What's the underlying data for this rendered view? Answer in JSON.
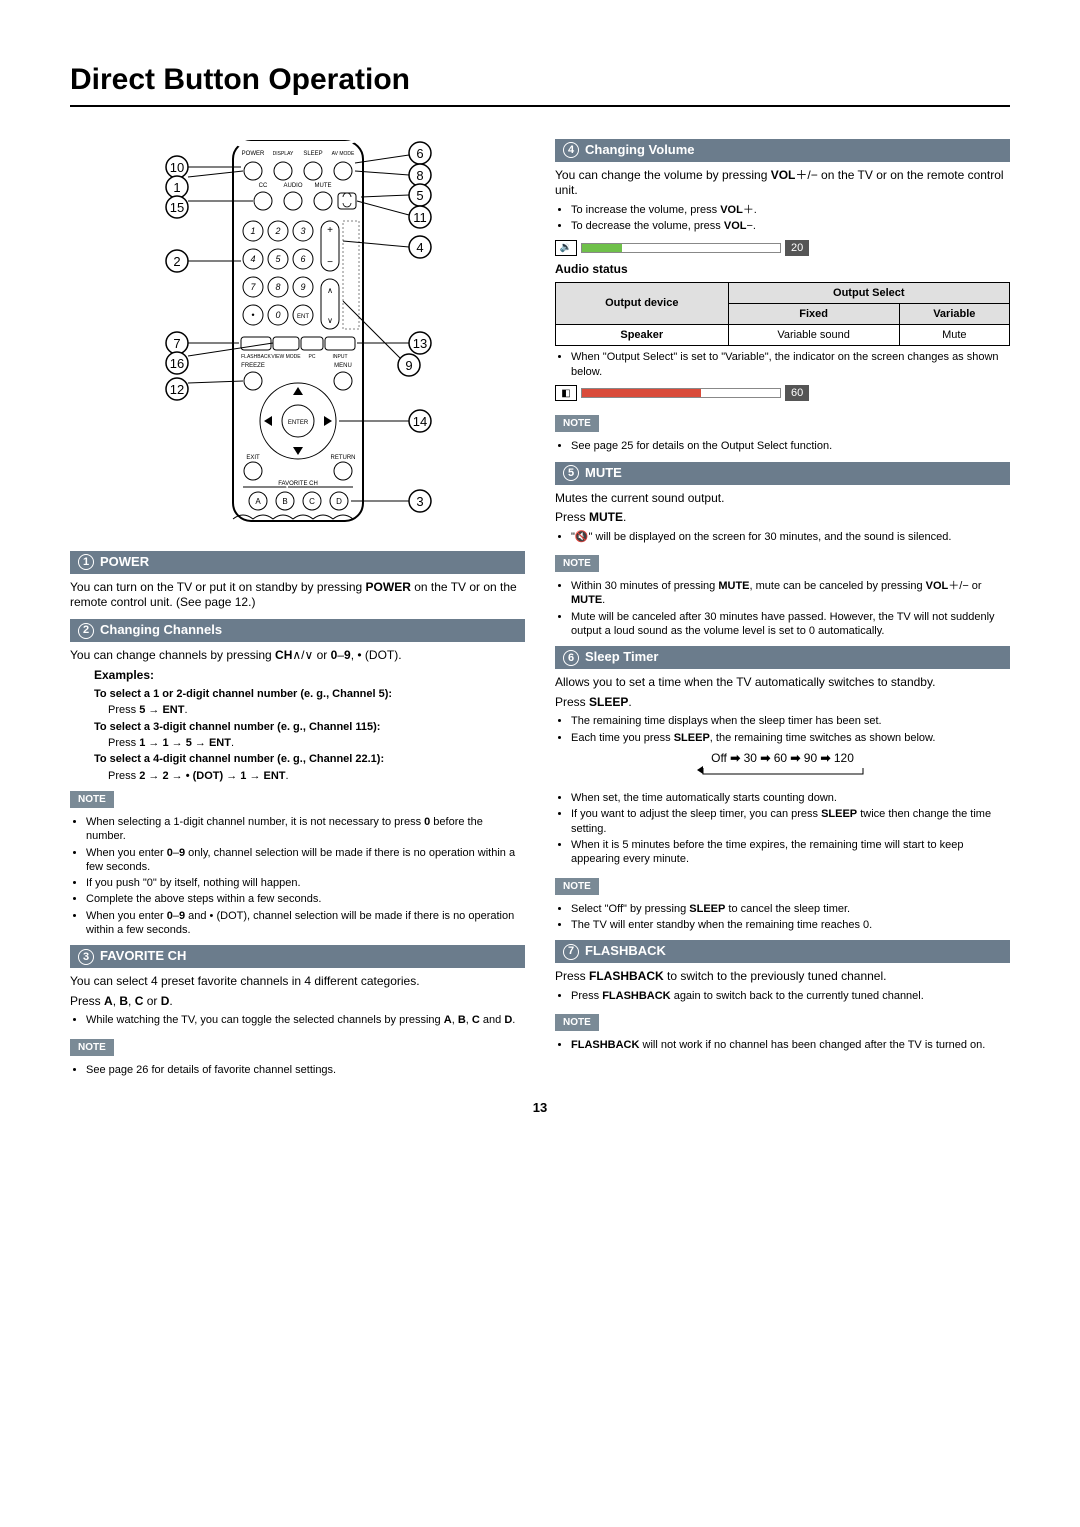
{
  "page_title": "Direct Button Operation",
  "page_number": "13",
  "remote": {
    "callouts_left": [
      "10",
      "1",
      "15",
      "2",
      "7",
      "16",
      "12"
    ],
    "callouts_right": [
      "6",
      "8",
      "5",
      "11",
      "4",
      "13",
      "9",
      "14",
      "3"
    ],
    "top_labels": [
      "POWER",
      "DISPLAY",
      "SLEEP",
      "AV MODE"
    ],
    "row2_labels": [
      "CC",
      "AUDIO",
      "MUTE"
    ],
    "keypad": [
      "1",
      "2",
      "3",
      "4",
      "5",
      "6",
      "7",
      "8",
      "9",
      "•",
      "0",
      "ENT"
    ],
    "strip_labels": [
      "FLASHBACK",
      "VIEW MODE",
      "PC",
      "INPUT"
    ],
    "mid_labels": [
      "FREEZE",
      "MENU"
    ],
    "center": "ENTER",
    "bottom_labels": [
      "EXIT",
      "RETURN"
    ],
    "fav_label": "FAVORITE CH",
    "fav_buttons": [
      "A",
      "B",
      "C",
      "D"
    ]
  },
  "sections": {
    "power": {
      "num": "1",
      "title": "POWER",
      "body": "You can turn on the TV or put it on standby by pressing <b>POWER</b> on the TV or on the remote control unit. (See page 12.)"
    },
    "changing_channels": {
      "num": "2",
      "title": "Changing Channels",
      "body": "You can change channels by pressing <b>CH</b>∧/∨ or <b>0</b>–<b>9</b>, • (DOT).",
      "examples_title": "Examples:",
      "ex": [
        {
          "t": "To select a 1 or 2-digit channel number (e. g., Channel 5):",
          "s": "Press <b>5</b> → <b>ENT</b>."
        },
        {
          "t": "To select a 3-digit channel number (e. g., Channel 115):",
          "s": "Press <b>1</b> → <b>1</b> → <b>5</b> → <b>ENT</b>."
        },
        {
          "t": "To select a 4-digit channel number (e. g., Channel 22.1):",
          "s": "Press <b>2</b> → <b>2</b> → <b>• (DOT)</b> → <b>1</b> → <b>ENT</b>."
        }
      ],
      "notes": [
        "When selecting a 1-digit channel number, it is not necessary to press <b>0</b> before the number.",
        "When you enter <b>0</b>–<b>9</b> only, channel selection will be made if there is no operation within a few seconds.",
        "If you push \"0\" by itself, nothing will happen.",
        "Complete the above steps within a few seconds.",
        "When you enter <b>0</b>–<b>9</b> and • (DOT), channel selection will be made if there is no operation within a few seconds."
      ]
    },
    "favorite": {
      "num": "3",
      "title": "FAVORITE CH",
      "body": "You can select 4 preset favorite channels in 4 different categories.",
      "line2": "Press <b>A</b>, <b>B</b>, <b>C</b> or <b>D</b>.",
      "bullets": [
        "While watching the TV, you can toggle the selected channels by pressing <b>A</b>, <b>B</b>, <b>C</b> and <b>D</b>."
      ],
      "notes": [
        "See page 26 for details of favorite channel settings."
      ]
    },
    "volume": {
      "num": "4",
      "title": "Changing Volume",
      "body": "You can change the volume by pressing <b>VOL</b>＋/− on the TV or on the remote control unit.",
      "bullets": [
        "To increase the volume, press <b>VOL</b>＋.",
        "To decrease the volume, press <b>VOL</b>−."
      ],
      "bar1": {
        "value": "20",
        "fill_pct": 20,
        "fill_color": "#6fc04a",
        "icon": "🔉"
      },
      "audio_status_title": "Audio status",
      "table": {
        "head_device": "Output device",
        "head_select": "Output Select",
        "head_fixed": "Fixed",
        "head_variable": "Variable",
        "row_speaker": "Speaker",
        "cell_fixed": "Variable sound",
        "cell_variable": "Mute"
      },
      "after_table": "When \"Output Select\" is set to \"Variable\", the indicator on the screen changes as shown below.",
      "bar2": {
        "value": "60",
        "fill_pct": 60,
        "fill_color": "#d94b3a",
        "icon": "◧"
      },
      "notes": [
        "See page 25 for details on the Output Select function."
      ]
    },
    "mute": {
      "num": "5",
      "title": "MUTE",
      "body": "Mutes the current sound output.",
      "line2": "Press <b>MUTE</b>.",
      "bullets": [
        "\"🔇\" will be displayed on the screen for 30 minutes, and the sound is silenced."
      ],
      "notes": [
        "Within 30 minutes of pressing <b>MUTE</b>, mute can be canceled by pressing <b>VOL</b>＋/− or <b>MUTE</b>.",
        "Mute will be canceled after 30 minutes have passed. However, the TV will not suddenly output a loud sound as the volume level is set to 0 automatically."
      ]
    },
    "sleep": {
      "num": "6",
      "title": "Sleep Timer",
      "body": "Allows you to set a time when the TV automatically switches to standby.",
      "line2": "Press <b>SLEEP</b>.",
      "bullets": [
        "The remaining time displays when the sleep timer has been set.",
        "Each time you press <b>SLEEP</b>, the remaining time switches as shown below."
      ],
      "sequence": [
        "Off",
        "30",
        "60",
        "90",
        "120"
      ],
      "bullets2": [
        "When set, the time automatically starts counting down.",
        "If you want to adjust the sleep timer, you can press <b>SLEEP</b> twice then change the time setting.",
        "When it is 5 minutes before the time expires, the remaining time will start to keep appearing every minute."
      ],
      "notes": [
        "Select \"Off\" by pressing <b>SLEEP</b> to cancel the sleep timer.",
        "The TV will enter standby when the remaining time reaches 0."
      ]
    },
    "flashback": {
      "num": "7",
      "title": "FLASHBACK",
      "body": "Press <b>FLASHBACK</b> to switch to the previously tuned channel.",
      "bullets": [
        "Press <b>FLASHBACK</b> again to switch back to the currently tuned channel."
      ],
      "notes": [
        "<b>FLASHBACK</b> will not work if no channel has been changed after the TV is turned on."
      ]
    }
  },
  "note_label": "NOTE"
}
